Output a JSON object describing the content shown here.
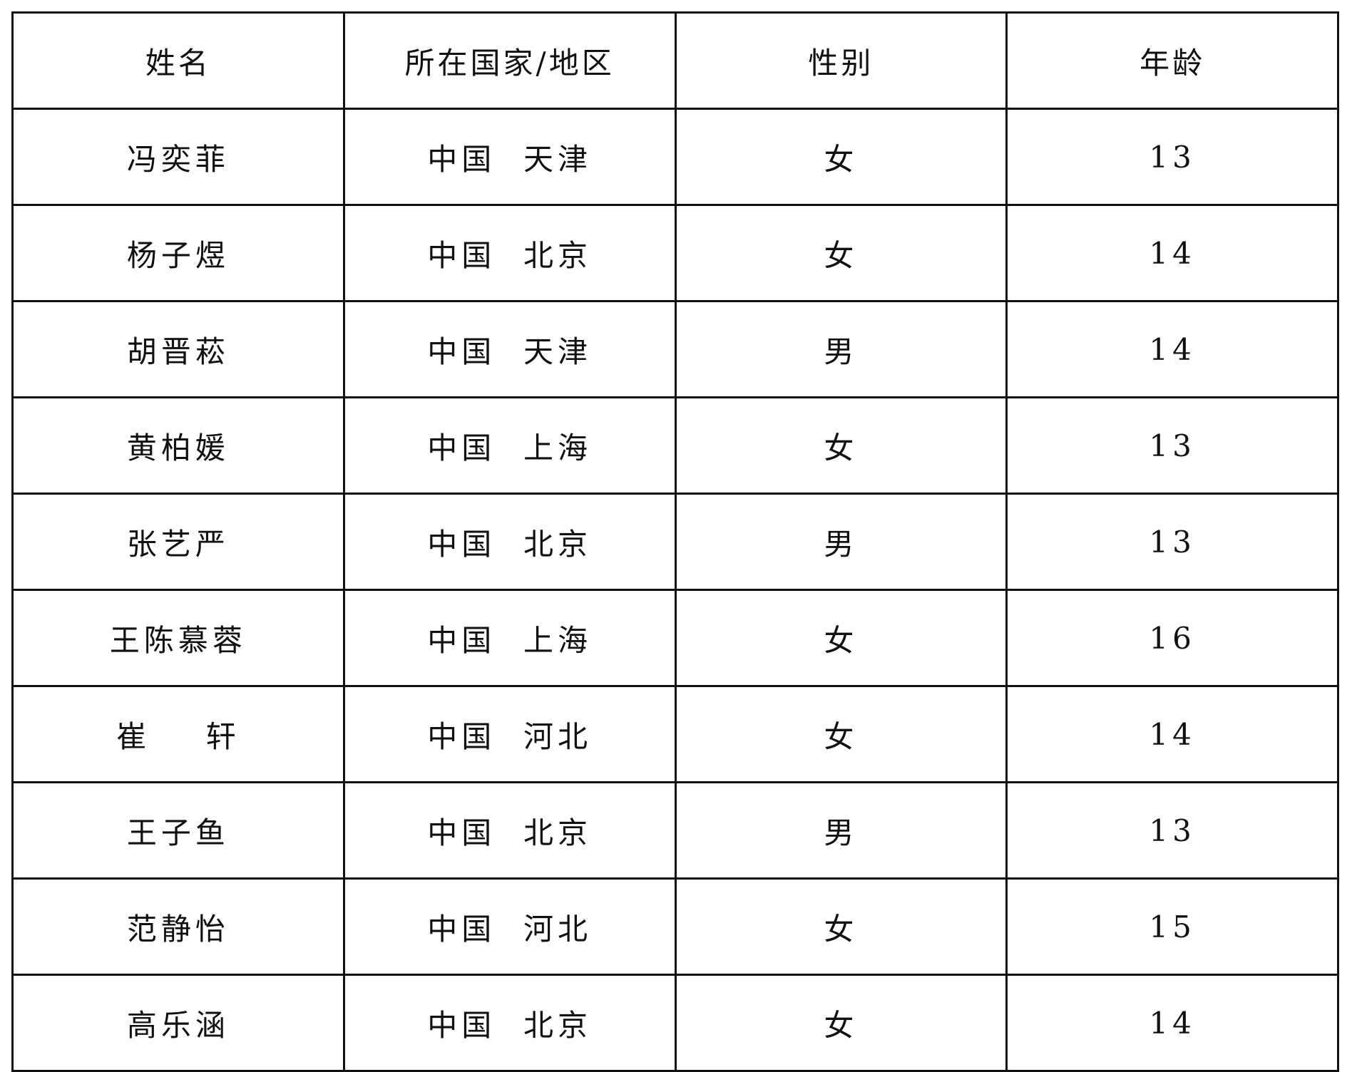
{
  "table": {
    "headers": [
      "姓名",
      "所在国家/地区",
      "性别",
      "年龄"
    ],
    "rows": [
      [
        "冯奕菲",
        "中国  天津",
        "女",
        "13"
      ],
      [
        "杨子煜",
        "中国  北京",
        "女",
        "14"
      ],
      [
        "胡晋菘",
        "中国  天津",
        "男",
        "14"
      ],
      [
        "黄柏媛",
        "中国  上海",
        "女",
        "13"
      ],
      [
        "张艺严",
        "中国  北京",
        "男",
        "13"
      ],
      [
        "王陈慕蓉",
        "中国  上海",
        "女",
        "16"
      ],
      [
        "崔    轩",
        "中国  河北",
        "女",
        "14"
      ],
      [
        "王子鱼",
        "中国  北京",
        "男",
        "13"
      ],
      [
        "范静怡",
        "中国  河北",
        "女",
        "15"
      ],
      [
        "高乐涵",
        "中国  北京",
        "女",
        "14"
      ]
    ]
  }
}
